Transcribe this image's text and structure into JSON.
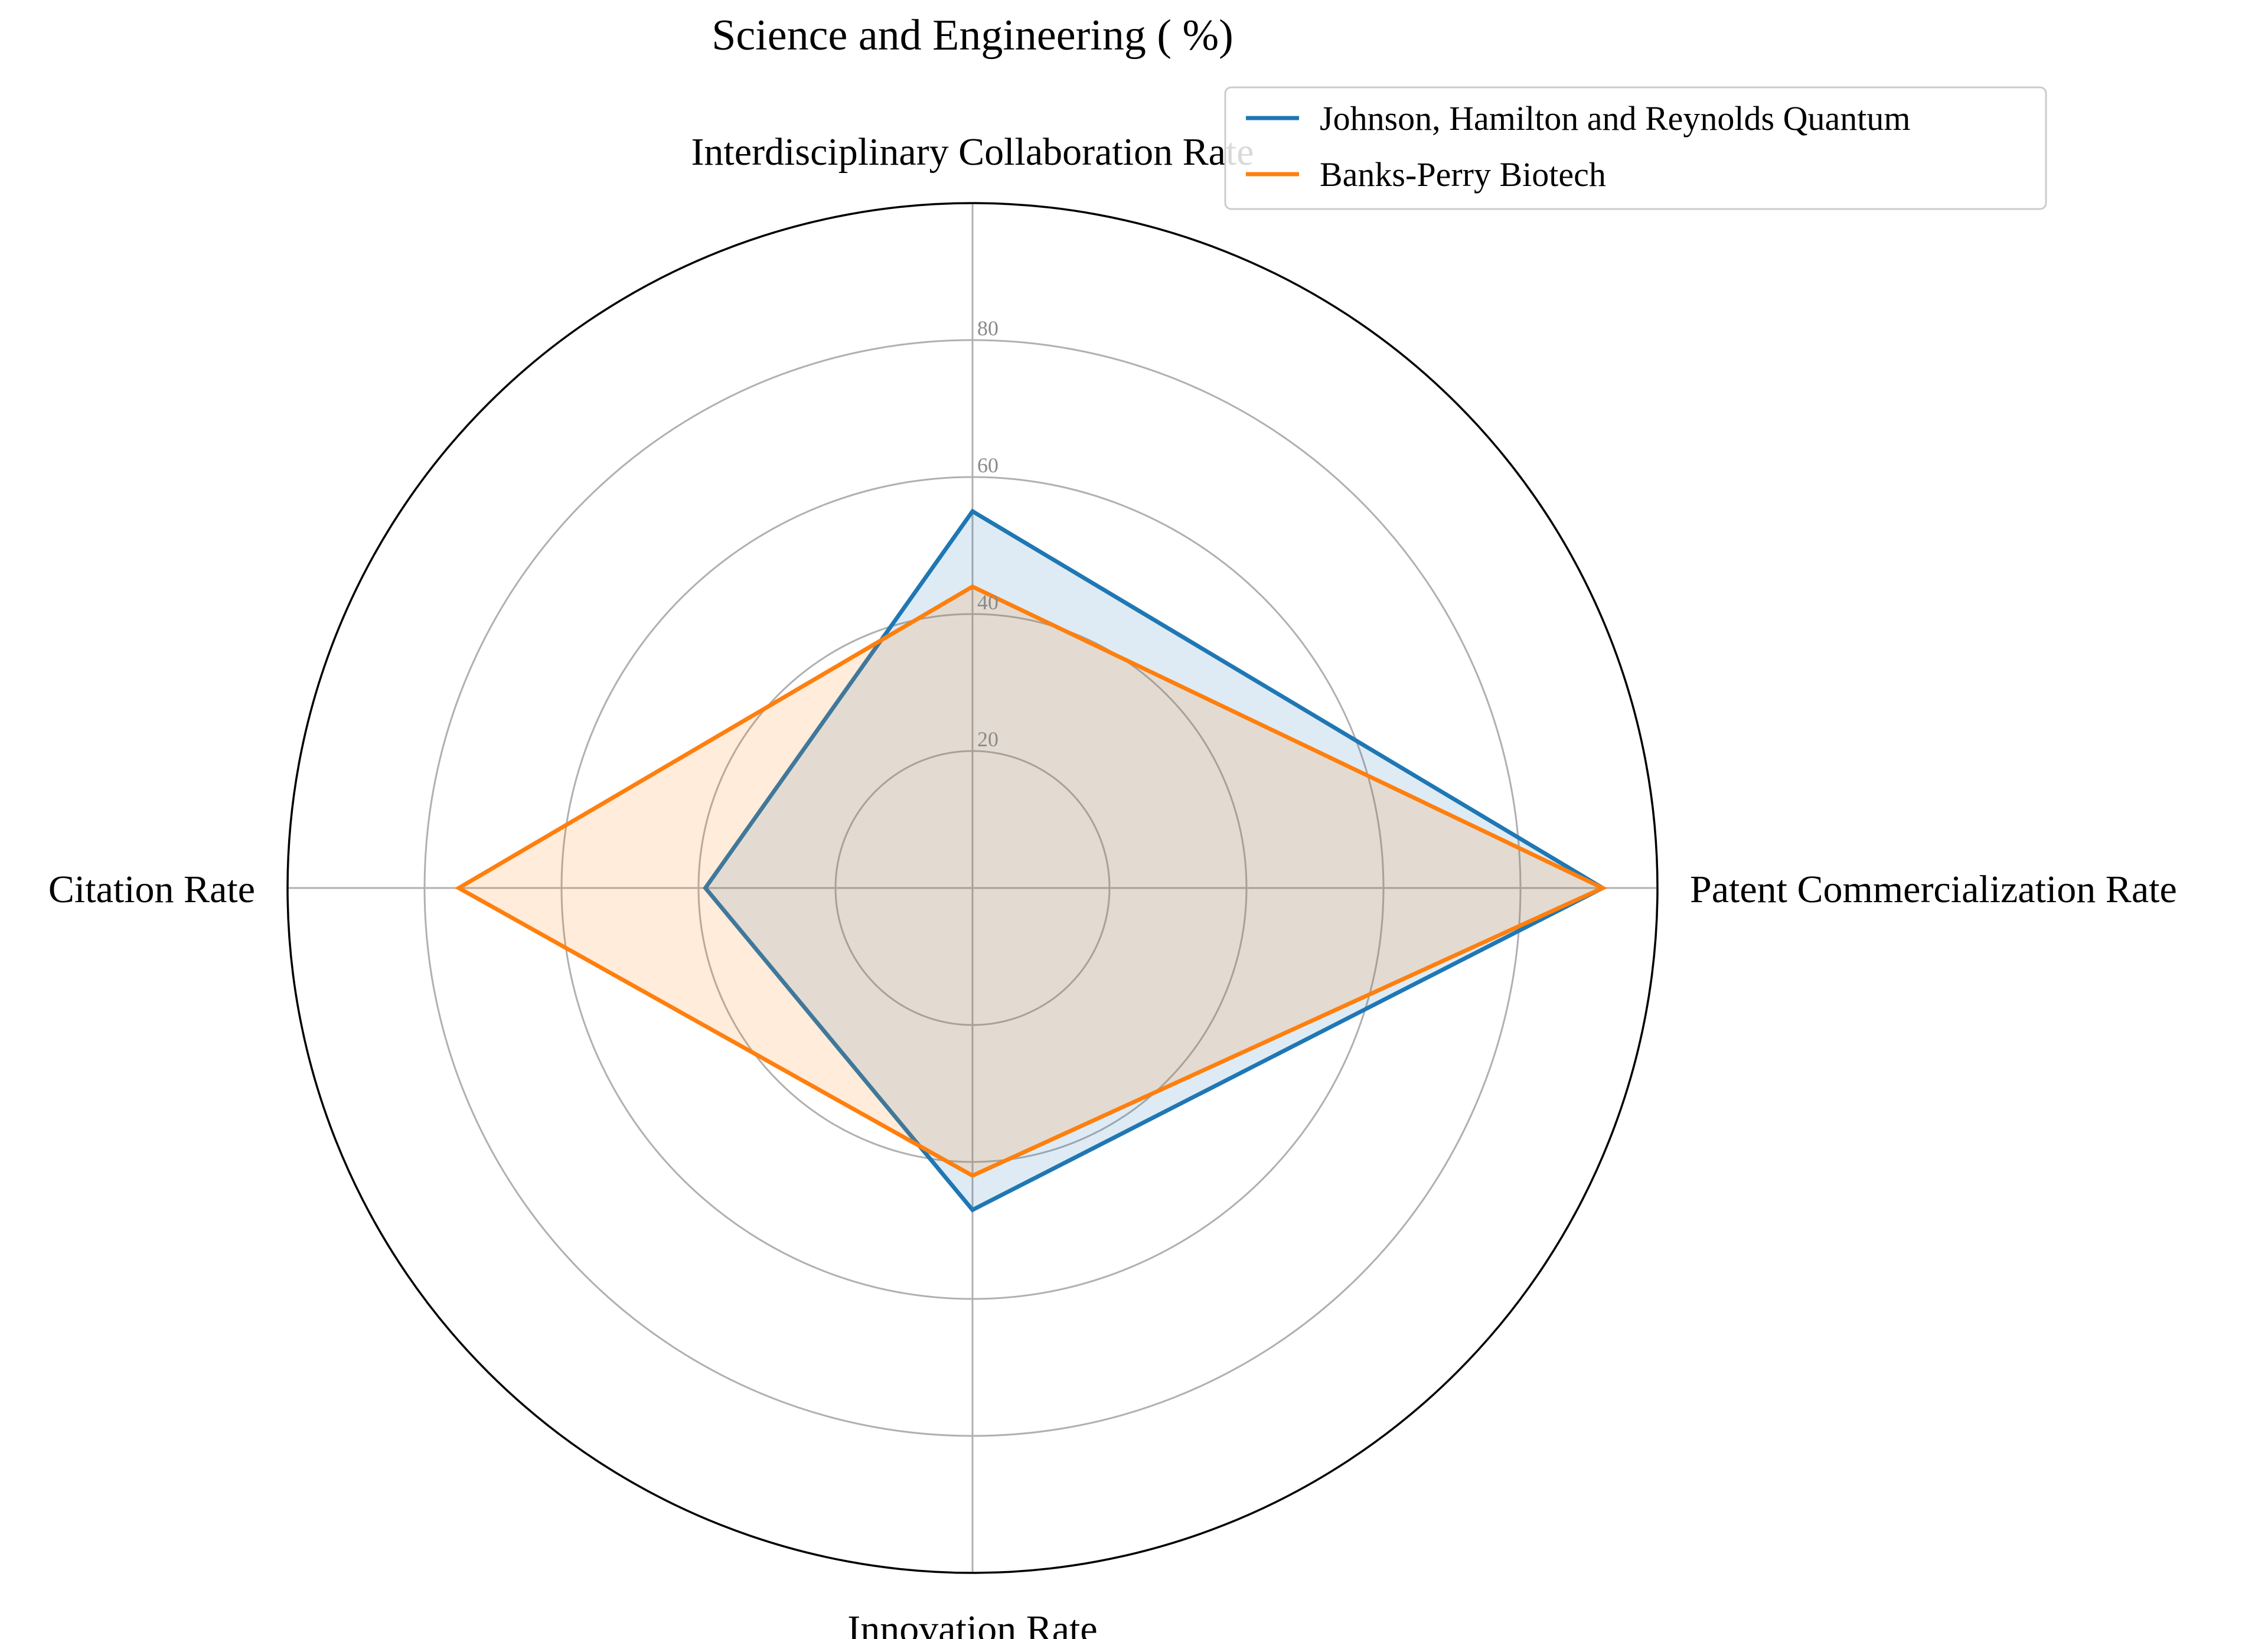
{
  "chart_data": {
    "type": "radar",
    "title": "Science and Engineering ( %)",
    "axes": [
      "Interdisciplinary Collaboration Rate",
      "Patent Commercialization Rate",
      "Innovation Rate",
      "Citation Rate"
    ],
    "rlim": [
      0,
      100
    ],
    "rticks": [
      20,
      40,
      60,
      80
    ],
    "rtick_labels": [
      "20",
      "40",
      "60",
      "80"
    ],
    "grid": true,
    "legend_position": "top-right",
    "series": [
      {
        "name": "Johnson, Hamilton and Reynolds Quantum",
        "color": "#1f77b4",
        "values": [
          55,
          92,
          47,
          39
        ]
      },
      {
        "name": "Banks-Perry Biotech",
        "color": "#ff7f0e",
        "values": [
          44,
          92,
          42,
          75
        ]
      }
    ]
  }
}
